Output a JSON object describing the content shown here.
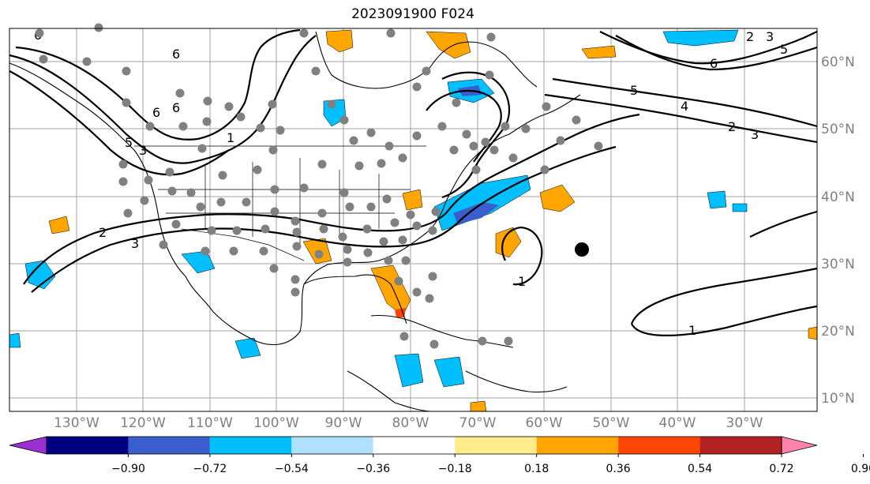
{
  "title": "2023091900 F024",
  "map": {
    "lat_labels": [
      "60°N",
      "50°N",
      "40°N",
      "30°N",
      "20°N",
      "10°N"
    ],
    "lon_labels": [
      "130°W",
      "120°W",
      "110°W",
      "100°W",
      "90°W",
      "80°W",
      "70°W",
      "60°W",
      "50°W",
      "40°W",
      "30°W"
    ]
  },
  "contour_labels": [
    "6",
    "6",
    "6",
    "6",
    "5",
    "5",
    "4",
    "3",
    "2",
    "2",
    "3",
    "1",
    "2",
    "3",
    "3",
    "1",
    "1",
    "6",
    "5"
  ],
  "colorbar": {
    "colors": [
      "#9b30d0",
      "#000080",
      "#3a5fcd",
      "#00bfff",
      "#b0e2ff",
      "#ffffff",
      "#ffec8b",
      "#ffa500",
      "#ff4500",
      "#b22222",
      "#ff82ab"
    ],
    "labels": [
      "−0.90",
      "−0.72",
      "−0.54",
      "−0.36",
      "−0.18",
      "0.18",
      "0.36",
      "0.54",
      "0.72",
      "0.90"
    ]
  },
  "colors": {
    "positive": "#ffa500",
    "negative": "#00bfff",
    "strong_negative": "#3a5fcd",
    "stations": "#808080"
  }
}
